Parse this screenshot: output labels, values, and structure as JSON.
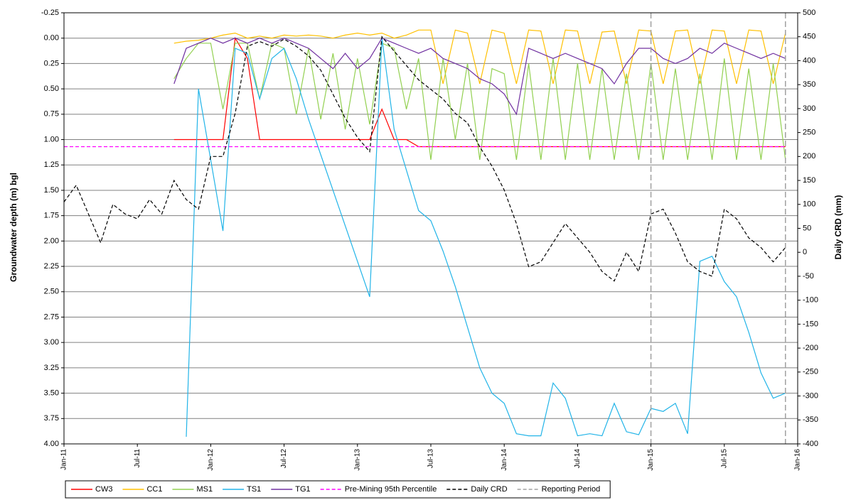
{
  "chart_data": {
    "type": "line",
    "y_title": "Groundwater depth (m) bgl",
    "y2_title": "Daily CRD (mm)",
    "x": [
      "2011-01",
      "2011-02",
      "2011-03",
      "2011-04",
      "2011-05",
      "2011-06",
      "2011-07",
      "2011-08",
      "2011-09",
      "2011-10",
      "2011-11",
      "2011-12",
      "2012-01",
      "2012-02",
      "2012-03",
      "2012-04",
      "2012-05",
      "2012-06",
      "2012-07",
      "2012-08",
      "2012-09",
      "2012-10",
      "2012-11",
      "2012-12",
      "2013-01",
      "2013-02",
      "2013-03",
      "2013-04",
      "2013-05",
      "2013-06",
      "2013-07",
      "2013-08",
      "2013-09",
      "2013-10",
      "2013-11",
      "2013-12",
      "2014-01",
      "2014-02",
      "2014-03",
      "2014-04",
      "2014-05",
      "2014-06",
      "2014-07",
      "2014-08",
      "2014-09",
      "2014-10",
      "2014-11",
      "2014-12",
      "2015-01",
      "2015-02",
      "2015-03",
      "2015-04",
      "2015-05",
      "2015-06",
      "2015-07",
      "2015-08",
      "2015-09",
      "2015-10",
      "2015-11",
      "2015-12"
    ],
    "xlim": [
      "2011-01",
      "2016-01"
    ],
    "xticks": [
      {
        "value": "2011-01",
        "label": "Jan-11"
      },
      {
        "value": "2011-07",
        "label": "Jul-11"
      },
      {
        "value": "2012-01",
        "label": "Jan-12"
      },
      {
        "value": "2012-07",
        "label": "Jul-12"
      },
      {
        "value": "2013-01",
        "label": "Jan-13"
      },
      {
        "value": "2013-07",
        "label": "Jul-13"
      },
      {
        "value": "2014-01",
        "label": "Jan-14"
      },
      {
        "value": "2014-07",
        "label": "Jul-14"
      },
      {
        "value": "2015-01",
        "label": "Jan-15"
      },
      {
        "value": "2015-07",
        "label": "Jul-15"
      },
      {
        "value": "2016-01",
        "label": "Jan-16"
      }
    ],
    "ylim": [
      -0.25,
      4
    ],
    "y_inverted": true,
    "yticks": [
      -0.25,
      {
        "value": 0,
        "label": "0.00"
      },
      0.25,
      {
        "value": 0.5,
        "label": "0.50"
      },
      0.75,
      {
        "value": 1,
        "label": "1.00"
      },
      1.25,
      {
        "value": 1.5,
        "label": "1.50"
      },
      1.75,
      {
        "value": 2,
        "label": "2.00"
      },
      2.25,
      {
        "value": 2.5,
        "label": "2.50"
      },
      2.75,
      {
        "value": 3,
        "label": "3.00"
      },
      3.25,
      {
        "value": 3.5,
        "label": "3.50"
      },
      3.75,
      {
        "value": 4,
        "label": "4.00"
      }
    ],
    "y2lim": [
      -400,
      500
    ],
    "y2ticks": [
      500,
      450,
      400,
      350,
      300,
      250,
      200,
      150,
      100,
      50,
      0,
      -50,
      -100,
      -150,
      -200,
      -250,
      -300,
      -350,
      -400
    ],
    "grid": true,
    "legend": "bottom",
    "series": [
      {
        "name": "CW3",
        "color": "#ff0000",
        "style": "solid",
        "values": [
          null,
          null,
          null,
          null,
          null,
          null,
          null,
          null,
          null,
          1,
          1,
          1,
          1,
          1,
          0,
          0.2,
          1,
          1,
          1,
          1,
          1,
          1,
          1,
          1,
          1,
          1,
          0.7,
          1,
          1,
          1.07,
          1.07,
          1.07,
          1.07,
          1.07,
          1.07,
          1.07,
          1.07,
          1.07,
          1.07,
          1.07,
          1.07,
          1.07,
          1.07,
          1.07,
          1.07,
          1.07,
          1.07,
          1.07,
          1.07,
          1.07,
          1.07,
          1.07,
          1.07,
          1.07,
          1.07,
          1.07,
          1.07,
          1.07,
          1.07,
          1.07
        ]
      },
      {
        "name": "CC1",
        "color": "#ffc000",
        "style": "solid",
        "values": [
          null,
          null,
          null,
          null,
          null,
          null,
          null,
          null,
          null,
          0.05,
          0.03,
          0.02,
          0,
          -0.03,
          -0.05,
          0,
          -0.02,
          0,
          -0.03,
          -0.02,
          -0.03,
          -0.02,
          0,
          -0.03,
          -0.05,
          -0.03,
          -0.05,
          0,
          -0.03,
          -0.08,
          -0.08,
          0.45,
          -0.08,
          -0.05,
          0.45,
          -0.08,
          -0.05,
          0.45,
          -0.08,
          -0.07,
          0.45,
          -0.08,
          -0.07,
          0.45,
          -0.06,
          -0.07,
          0.45,
          -0.08,
          -0.07,
          0.45,
          -0.07,
          -0.08,
          0.45,
          -0.08,
          -0.07,
          0.45,
          -0.08,
          -0.07,
          0.45,
          -0.05
        ]
      },
      {
        "name": "MS1",
        "color": "#92d050",
        "style": "solid",
        "values": [
          null,
          null,
          null,
          null,
          null,
          null,
          null,
          null,
          null,
          0.4,
          0.2,
          0.05,
          0.05,
          0.7,
          0.05,
          0.05,
          0.6,
          0.05,
          0.1,
          0.75,
          0.1,
          0.8,
          0.15,
          0.9,
          0.2,
          0.85,
          0.05,
          0.1,
          0.7,
          0.2,
          1.2,
          0.2,
          1,
          0.25,
          1.2,
          0.3,
          0.35,
          1.2,
          0.25,
          1.2,
          0.2,
          1.2,
          0.25,
          1.2,
          0.3,
          1.2,
          0.35,
          1.2,
          0.25,
          1.2,
          0.3,
          1.2,
          0.35,
          1.2,
          0.2,
          1.2,
          0.3,
          1.2,
          0.25,
          1.2
        ]
      },
      {
        "name": "TS1",
        "color": "#22b4e8",
        "style": "solid",
        "values": [
          null,
          null,
          null,
          null,
          null,
          null,
          null,
          null,
          null,
          null,
          3.93,
          0.5,
          1.2,
          1.9,
          0.1,
          0.15,
          0.6,
          0.2,
          0.1,
          0.4,
          0.8,
          1.15,
          1.5,
          1.85,
          2.2,
          2.55,
          0,
          0.9,
          1.3,
          1.7,
          1.8,
          2.1,
          2.45,
          2.85,
          3.25,
          3.5,
          3.6,
          3.9,
          3.92,
          3.92,
          3.4,
          3.55,
          3.92,
          3.9,
          3.92,
          3.6,
          3.88,
          3.91,
          3.65,
          3.68,
          3.6,
          3.9,
          2.2,
          2.15,
          2.4,
          2.55,
          2.9,
          3.3,
          3.55,
          3.5
        ]
      },
      {
        "name": "TG1",
        "color": "#7030a0",
        "style": "solid",
        "values": [
          null,
          null,
          null,
          null,
          null,
          null,
          null,
          null,
          null,
          0.45,
          0.1,
          0.05,
          0,
          0.05,
          0,
          0.05,
          0,
          0.05,
          0,
          0.05,
          0.1,
          0.2,
          0.3,
          0.15,
          0.3,
          0.2,
          0,
          0.05,
          0.1,
          0.15,
          0.1,
          0.2,
          0.25,
          0.3,
          0.4,
          0.45,
          0.55,
          0.75,
          0.1,
          0.15,
          0.2,
          0.15,
          0.2,
          0.25,
          0.3,
          0.45,
          0.25,
          0.1,
          0.1,
          0.2,
          0.25,
          0.2,
          0.1,
          0.15,
          0.05,
          0.1,
          0.15,
          0.2,
          0.15,
          0.2
        ]
      },
      {
        "name": "Pre-Mining 95th Percentile",
        "color": "#ff00ff",
        "style": "dashed",
        "values": [
          1.07,
          1.07,
          1.07,
          1.07,
          1.07,
          1.07,
          1.07,
          1.07,
          1.07,
          1.07,
          1.07,
          1.07,
          1.07,
          1.07,
          1.07,
          1.07,
          1.07,
          1.07,
          1.07,
          1.07,
          1.07,
          1.07,
          1.07,
          1.07,
          1.07,
          1.07,
          1.07,
          1.07,
          1.07,
          1.07,
          1.07,
          1.07,
          1.07,
          1.07,
          1.07,
          1.07,
          1.07,
          1.07,
          1.07,
          1.07,
          1.07,
          1.07,
          1.07,
          1.07,
          1.07,
          1.07,
          1.07,
          1.07,
          1.07,
          1.07,
          1.07,
          1.07,
          1.07,
          1.07,
          1.07,
          1.07,
          1.07,
          1.07,
          1.07,
          1.07
        ]
      },
      {
        "name": "Daily CRD",
        "color": "#000000",
        "style": "dashed",
        "axis": "y2",
        "values": [
          105,
          140,
          80,
          20,
          100,
          80,
          70,
          110,
          80,
          150,
          110,
          90,
          200,
          200,
          290,
          430,
          440,
          430,
          445,
          430,
          410,
          380,
          330,
          280,
          240,
          210,
          450,
          420,
          390,
          360,
          340,
          320,
          290,
          270,
          220,
          180,
          130,
          60,
          -30,
          -20,
          20,
          60,
          30,
          0,
          -40,
          -60,
          0,
          -40,
          80,
          90,
          40,
          -20,
          -40,
          -50,
          90,
          70,
          30,
          10,
          -20,
          10
        ]
      }
    ],
    "reporting_period": {
      "name": "Reporting Period",
      "color": "#a0a0a0",
      "style": "dashed",
      "x": [
        "2015-01",
        "2015-12"
      ]
    }
  }
}
